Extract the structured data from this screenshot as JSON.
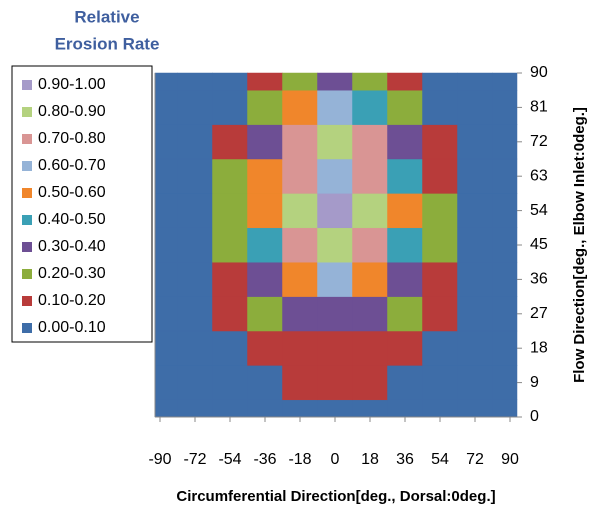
{
  "chart_data": {
    "type": "heatmap",
    "legend_title": [
      "Relative",
      "Erosion Rate"
    ],
    "xlabel": "Circumferential Direction[deg., Dorsal:0deg.]",
    "ylabel": "Flow Direction[deg.,  Elbow Inlet:0deg.]",
    "x": [
      -90,
      -72,
      -54,
      -36,
      -18,
      0,
      18,
      36,
      54,
      72,
      90
    ],
    "y": [
      0,
      9,
      18,
      27,
      36,
      45,
      54,
      63,
      72,
      81,
      90
    ],
    "xlim": [
      -90,
      90
    ],
    "ylim": [
      0,
      90
    ],
    "xticks": [
      -90,
      -72,
      -54,
      -36,
      -18,
      0,
      18,
      36,
      54,
      72,
      90
    ],
    "yticks": [
      0,
      9,
      18,
      27,
      36,
      45,
      54,
      63,
      72,
      81,
      90
    ],
    "bands": [
      {
        "label": "0.90-1.00",
        "min": 0.9,
        "max": 1.0,
        "color": "#a59ac9"
      },
      {
        "label": "0.80-0.90",
        "min": 0.8,
        "max": 0.9,
        "color": "#b4d27f"
      },
      {
        "label": "0.70-0.80",
        "min": 0.7,
        "max": 0.8,
        "color": "#d99594"
      },
      {
        "label": "0.60-0.70",
        "min": 0.6,
        "max": 0.7,
        "color": "#95b3d7"
      },
      {
        "label": "0.50-0.60",
        "min": 0.5,
        "max": 0.6,
        "color": "#f0862b"
      },
      {
        "label": "0.40-0.50",
        "min": 0.4,
        "max": 0.5,
        "color": "#3aa0b5"
      },
      {
        "label": "0.30-0.40",
        "min": 0.3,
        "max": 0.4,
        "color": "#6d4f94"
      },
      {
        "label": "0.20-0.30",
        "min": 0.2,
        "max": 0.3,
        "color": "#8cad3c"
      },
      {
        "label": "0.10-0.20",
        "min": 0.1,
        "max": 0.2,
        "color": "#b83b3a"
      },
      {
        "label": "0.00-0.10",
        "min": 0.0,
        "max": 0.1,
        "color": "#3e6da8"
      }
    ],
    "z": [
      [
        0.05,
        0.05,
        0.05,
        0.05,
        0.05,
        0.05,
        0.05,
        0.05,
        0.05,
        0.05,
        0.05
      ],
      [
        0.05,
        0.05,
        0.05,
        0.08,
        0.1,
        0.1,
        0.1,
        0.08,
        0.05,
        0.05,
        0.05
      ],
      [
        0.05,
        0.05,
        0.08,
        0.15,
        0.18,
        0.18,
        0.18,
        0.15,
        0.08,
        0.05,
        0.05
      ],
      [
        0.05,
        0.05,
        0.1,
        0.25,
        0.3,
        0.32,
        0.3,
        0.25,
        0.1,
        0.05,
        0.05
      ],
      [
        0.05,
        0.06,
        0.15,
        0.35,
        0.55,
        0.6,
        0.55,
        0.35,
        0.15,
        0.06,
        0.05
      ],
      [
        0.05,
        0.06,
        0.2,
        0.45,
        0.75,
        0.85,
        0.75,
        0.45,
        0.2,
        0.06,
        0.05
      ],
      [
        0.05,
        0.06,
        0.25,
        0.5,
        0.85,
        0.95,
        0.8,
        0.5,
        0.22,
        0.06,
        0.05
      ],
      [
        0.05,
        0.05,
        0.2,
        0.5,
        0.75,
        0.65,
        0.7,
        0.45,
        0.18,
        0.05,
        0.05
      ],
      [
        0.05,
        0.05,
        0.12,
        0.35,
        0.75,
        0.8,
        0.7,
        0.35,
        0.12,
        0.05,
        0.05
      ],
      [
        0.05,
        0.05,
        0.08,
        0.2,
        0.5,
        0.6,
        0.45,
        0.2,
        0.08,
        0.05,
        0.05
      ],
      [
        0.05,
        0.05,
        0.05,
        0.1,
        0.25,
        0.3,
        0.22,
        0.1,
        0.05,
        0.05,
        0.05
      ]
    ]
  }
}
